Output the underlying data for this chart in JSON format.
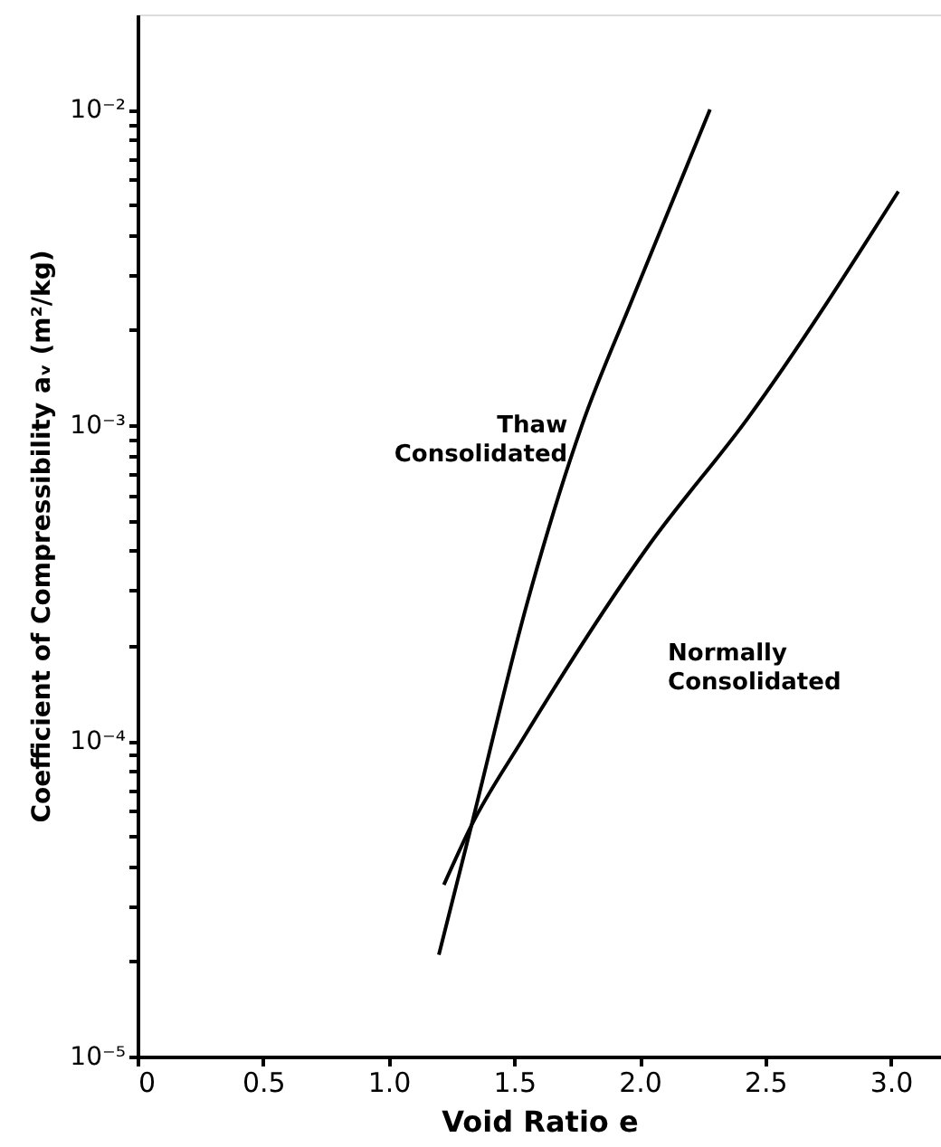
{
  "chart_data": {
    "type": "line",
    "xlabel": "Void Ratio e",
    "ylabel": "Coefficient of Compressibility aᵥ (m²/kg)",
    "log": "y",
    "grid": false,
    "marker": "none",
    "line_style": "solid",
    "xlim": [
      0,
      3.2
    ],
    "ylim": [
      1e-05,
      0.02
    ],
    "xticks": [
      0,
      0.5,
      {
        "value": 1.0,
        "label": "1.0"
      },
      1.5,
      {
        "value": 2.0,
        "label": "2.0"
      },
      2.5,
      {
        "value": 3.0,
        "label": "3.0"
      }
    ],
    "yticks": [
      {
        "value": 1e-05,
        "label": "10⁻⁵"
      },
      {
        "value": 2e-05,
        "label": null
      },
      {
        "value": 3e-05,
        "label": null
      },
      {
        "value": 4e-05,
        "label": null
      },
      {
        "value": 5e-05,
        "label": null
      },
      {
        "value": 6e-05,
        "label": null
      },
      {
        "value": 7e-05,
        "label": null
      },
      {
        "value": 8e-05,
        "label": null
      },
      {
        "value": 9e-05,
        "label": null
      },
      {
        "value": 0.0001,
        "label": "10⁻⁴"
      },
      {
        "value": 0.0002,
        "label": null
      },
      {
        "value": 0.0003,
        "label": null
      },
      {
        "value": 0.0004,
        "label": null
      },
      {
        "value": 0.0005,
        "label": null
      },
      {
        "value": 0.0006,
        "label": null
      },
      {
        "value": 0.0007,
        "label": null
      },
      {
        "value": 0.0008,
        "label": null
      },
      {
        "value": 0.0009,
        "label": null
      },
      {
        "value": 0.001,
        "label": "10⁻³"
      },
      {
        "value": 0.002,
        "label": null
      },
      {
        "value": 0.003,
        "label": null
      },
      {
        "value": 0.004,
        "label": null
      },
      {
        "value": 0.005,
        "label": null
      },
      {
        "value": 0.006,
        "label": null
      },
      {
        "value": 0.007,
        "label": null
      },
      {
        "value": 0.008,
        "label": null
      },
      {
        "value": 0.009,
        "label": null
      },
      {
        "value": 0.01,
        "label": "10⁻²"
      }
    ],
    "series": [
      {
        "name": "Thaw Consolidated",
        "color": "#000000",
        "x": [
          1.2,
          1.33,
          1.55,
          1.77,
          1.97,
          2.28
        ],
        "values": [
          2.1e-05,
          5.4e-05,
          0.00027,
          0.001,
          0.0025,
          0.01
        ]
      },
      {
        "name": "Normally Consolidated",
        "color": "#000000",
        "x": [
          1.22,
          1.33,
          1.53,
          2.04,
          2.43,
          3.03
        ],
        "values": [
          3.5e-05,
          5.4e-05,
          0.0001,
          0.00042,
          0.00105,
          0.0055
        ]
      }
    ]
  }
}
